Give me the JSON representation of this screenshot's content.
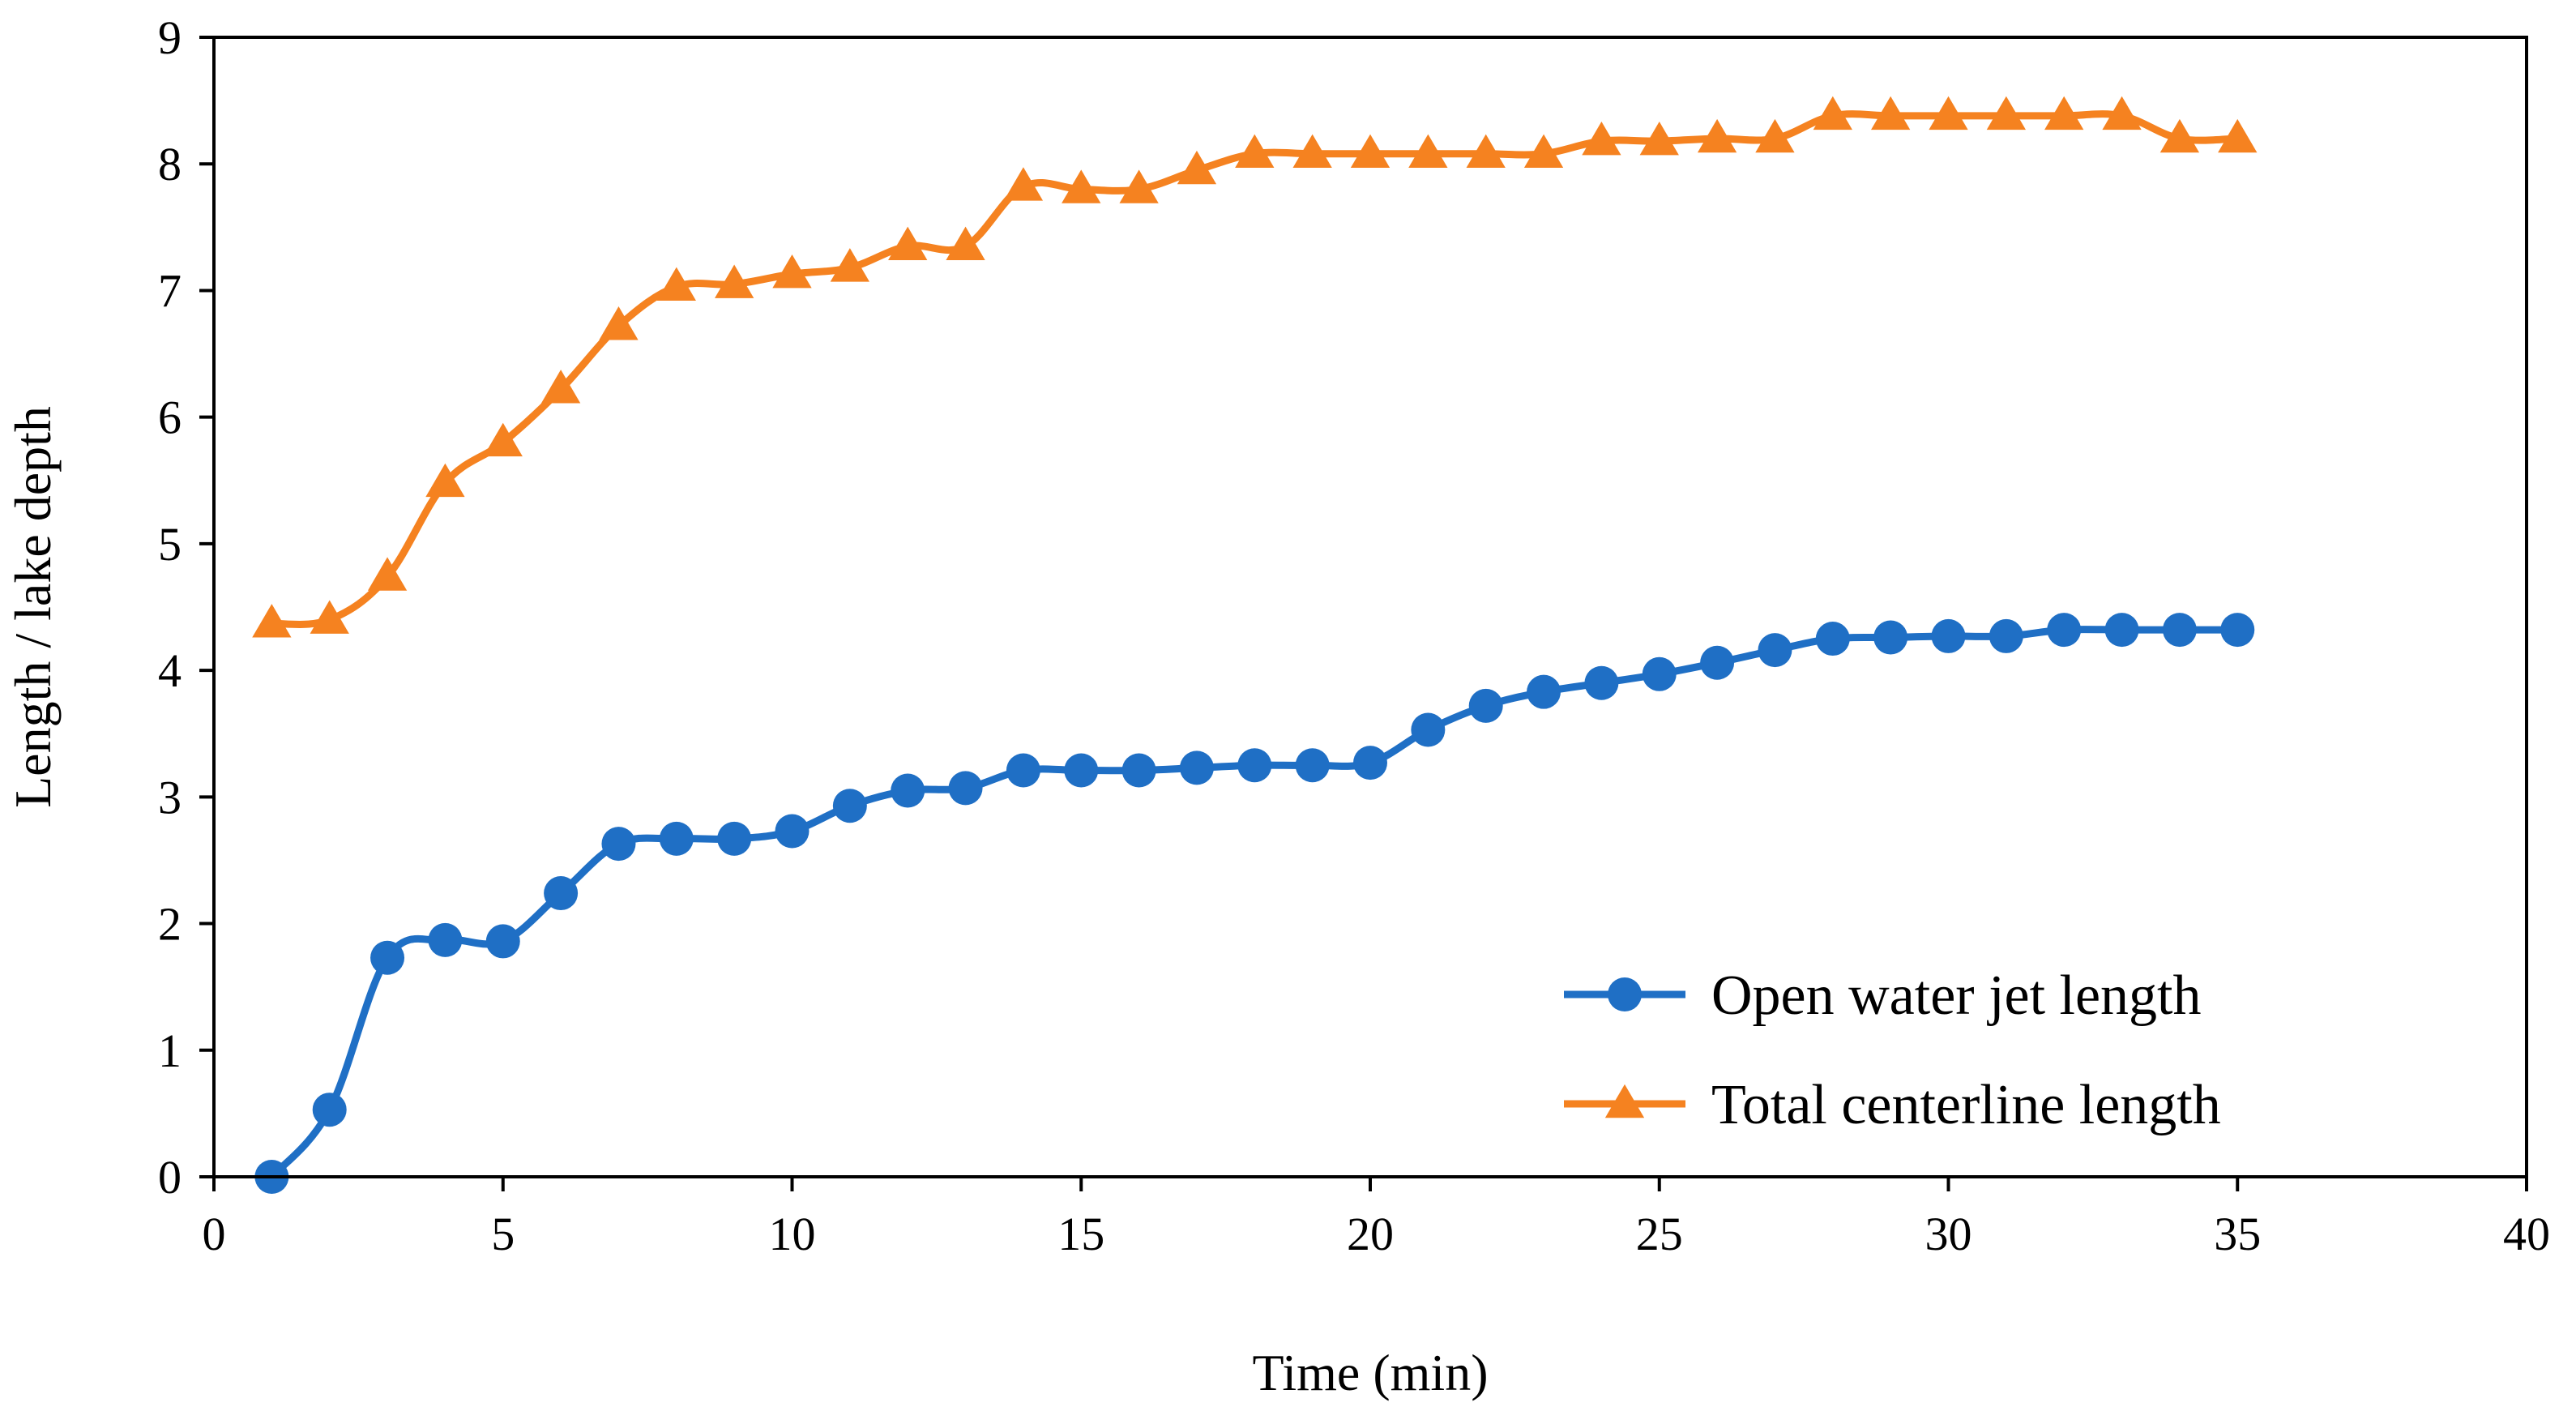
{
  "chart_data": {
    "type": "line",
    "title": "",
    "xlabel": "Time (min)",
    "ylabel": "Length / lake depth",
    "xlim": [
      0,
      40
    ],
    "ylim": [
      0,
      9
    ],
    "xticks": [
      0,
      5,
      10,
      15,
      20,
      25,
      30,
      35,
      40
    ],
    "yticks": [
      0,
      1,
      2,
      3,
      4,
      5,
      6,
      7,
      8,
      9
    ],
    "xtick_labels": [
      "0",
      "5",
      "10",
      "15",
      "20",
      "25",
      "30",
      "35",
      "40"
    ],
    "ytick_labels": [
      "0",
      "1",
      "2",
      "3",
      "4",
      "5",
      "6",
      "7",
      "8",
      "9"
    ],
    "grid": false,
    "legend_position": "bottom-right",
    "x": [
      1,
      2,
      3,
      4,
      5,
      6,
      7,
      8,
      9,
      10,
      11,
      12,
      13,
      14,
      15,
      16,
      17,
      18,
      19,
      20,
      21,
      22,
      23,
      24,
      25,
      26,
      27,
      28,
      29,
      30,
      31,
      32,
      33,
      34,
      35
    ],
    "series": [
      {
        "name": "Open water jet length",
        "color": "#1f6fc5",
        "marker": "circle",
        "values": [
          0.0,
          0.53,
          1.73,
          1.87,
          1.86,
          2.24,
          2.63,
          2.67,
          2.67,
          2.73,
          2.93,
          3.05,
          3.07,
          3.21,
          3.21,
          3.21,
          3.23,
          3.25,
          3.25,
          3.27,
          3.53,
          3.72,
          3.83,
          3.9,
          3.97,
          4.06,
          4.16,
          4.25,
          4.26,
          4.27,
          4.27,
          4.32,
          4.32,
          4.32,
          4.32
        ]
      },
      {
        "name": "Total centerline length",
        "color": "#f58220",
        "marker": "triangle",
        "values": [
          4.37,
          4.4,
          4.74,
          5.48,
          5.8,
          6.22,
          6.72,
          7.03,
          7.05,
          7.13,
          7.18,
          7.35,
          7.35,
          7.82,
          7.8,
          7.8,
          7.95,
          8.08,
          8.08,
          8.08,
          8.08,
          8.08,
          8.08,
          8.18,
          8.18,
          8.2,
          8.2,
          8.38,
          8.38,
          8.38,
          8.38,
          8.38,
          8.38,
          8.2,
          8.2
        ]
      }
    ]
  }
}
